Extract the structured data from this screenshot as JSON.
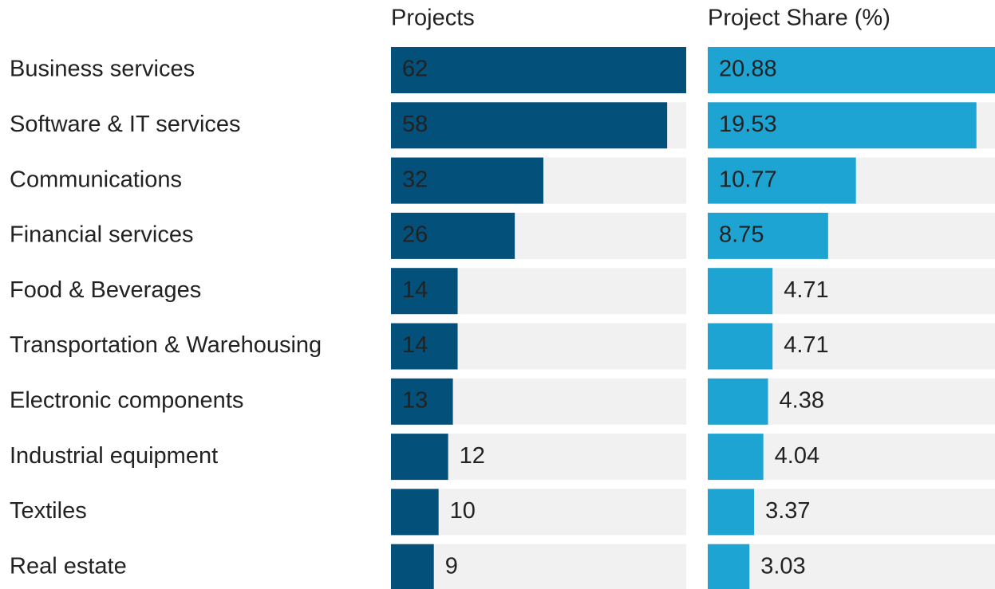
{
  "chart_data": {
    "type": "bar",
    "categories": [
      "Business services",
      "Software & IT services",
      "Communications",
      "Financial services",
      "Food & Beverages",
      "Transportation & Warehousing",
      "Electronic components",
      "Industrial equipment",
      "Textiles",
      "Real estate"
    ],
    "series": [
      {
        "name": "Projects",
        "color": "#03507a",
        "values": [
          62,
          58,
          32,
          26,
          14,
          14,
          13,
          12,
          10,
          9
        ]
      },
      {
        "name": "Project Share (%)",
        "color": "#1ea4d2",
        "values": [
          20.88,
          19.53,
          10.77,
          8.75,
          4.71,
          4.71,
          4.38,
          4.04,
          3.37,
          3.03
        ]
      }
    ]
  }
}
